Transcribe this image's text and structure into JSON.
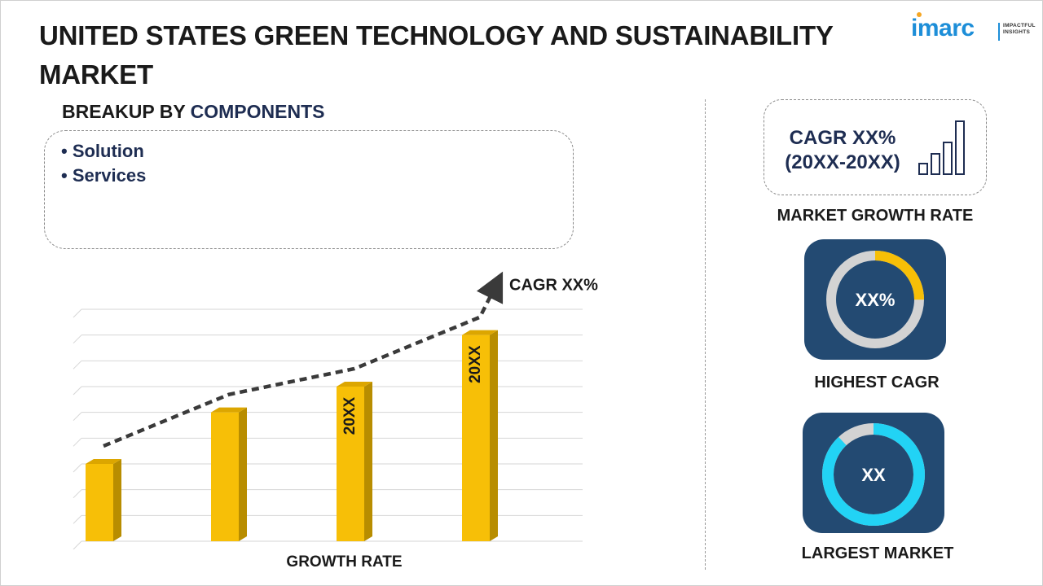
{
  "title": "UNITED STATES GREEN TECHNOLOGY AND SUSTAINABILITY MARKET",
  "logo": {
    "word": "imarc",
    "tagline_line1": "IMPACTFUL",
    "tagline_line2": "INSIGHTS"
  },
  "breakup": {
    "prefix": "BREAKUP BY",
    "dimension": "COMPONENTS",
    "items": [
      "• Solution",
      "• Services"
    ]
  },
  "chart_data": {
    "type": "bar",
    "categories": [
      "",
      "",
      "",
      ""
    ],
    "values": [
      3,
      5,
      6,
      8
    ],
    "value_labels": [
      "",
      "",
      "20XX",
      "20XX"
    ],
    "ylim": [
      0,
      9
    ],
    "grid": true,
    "trend_label": "CAGR XX%",
    "xlabel": "GROWTH RATE",
    "ylabel": "",
    "title": ""
  },
  "side_panel": {
    "cagr_line1": "CAGR XX%",
    "cagr_line2": "(20XX-20XX)",
    "growth_label": "MARKET GROWTH RATE",
    "highest_cagr": {
      "value": "XX%",
      "label": "HIGHEST CAGR",
      "fraction": 0.25
    },
    "largest_market": {
      "value": "XX",
      "label": "LARGEST MARKET",
      "fraction": 0.88
    }
  },
  "colors": {
    "bar_front": "#f7bf07",
    "bar_side": "#b88d00",
    "bar_top": "#dca600",
    "card_bg": "#234a72",
    "cagr_ring": "#f7bf07",
    "market_ring": "#22d3f5",
    "ring_track": "#d3d3d3",
    "accent_text": "#1e2d52"
  }
}
